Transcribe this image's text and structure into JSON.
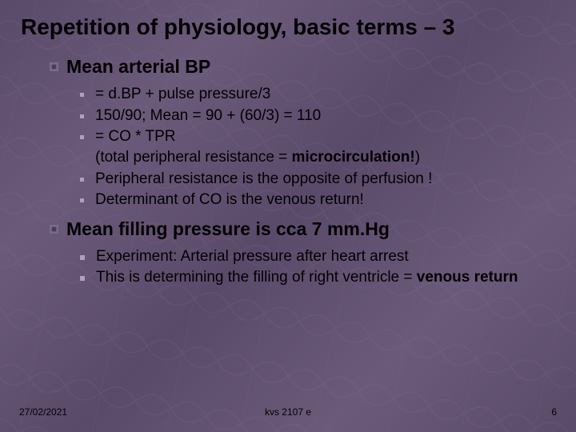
{
  "title": "Repetition of physiology,  basic terms – 3",
  "sections": [
    {
      "heading": "Mean arterial BP",
      "bullet_style": "dot",
      "items": [
        {
          "text": "= d.BP + pulse pressure/3"
        },
        {
          "text": "150/90; Mean = 90 + (60/3) = 110"
        },
        {
          "text_parts": [
            "= CO * TPR",
            "(total peripheral resistance = ",
            {
              "bold": "microcirculation!"
            },
            ")"
          ]
        },
        {
          "text": "Peripheral resistance is the opposite of perfusion !"
        },
        {
          "text": "Determinant of CO is the venous return!"
        }
      ]
    },
    {
      "heading": "Mean filling pressure is cca 7 mm.Hg",
      "bullet_style": "square",
      "items": [
        {
          "text": "Experiment: Arterial pressure after heart arrest"
        },
        {
          "text_parts": [
            "This is determining the filling of right ventricle = ",
            {
              "bold": "venous return"
            }
          ]
        }
      ]
    }
  ],
  "footer": {
    "date": "27/02/2021",
    "code": "kvs 2107 e",
    "page": "6"
  },
  "colors": {
    "bg_base": "#5e4e6e",
    "text": "#000000",
    "bullet_sub": "#b0a0b8",
    "bullet_main_outer": "#7a6a8a",
    "bullet_main_inner": "#4a3a5a"
  },
  "fonts": {
    "title_size": 28,
    "heading_size": 23,
    "sub_size": 19,
    "footer_size": 12
  }
}
